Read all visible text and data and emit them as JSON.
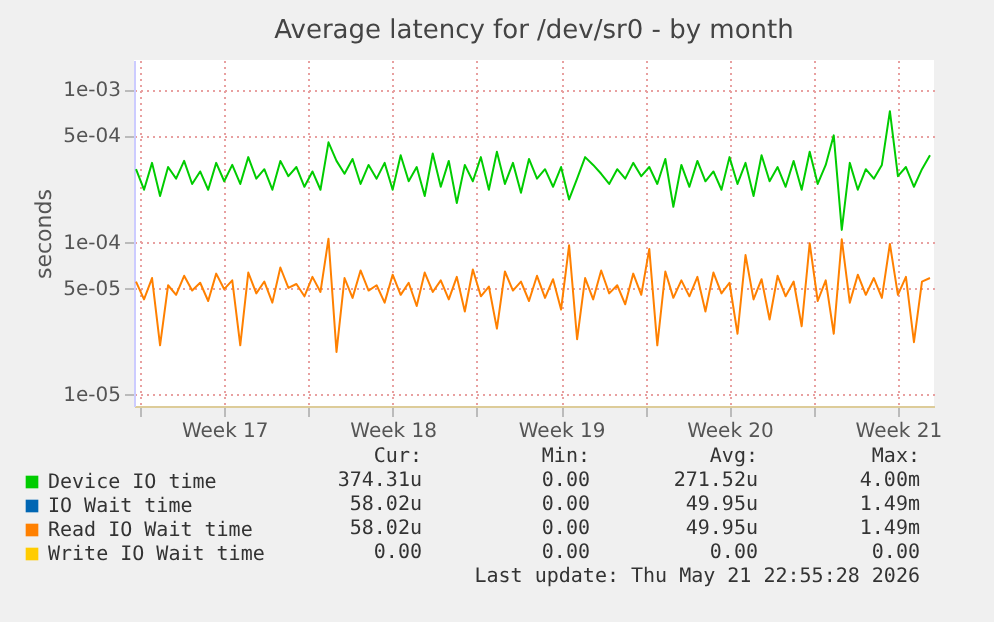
{
  "chart_data": {
    "type": "line",
    "title": "Average latency for /dev/sr0 - by month",
    "ylabel": "seconds",
    "log": true,
    "grid": true,
    "legend": "bottom left",
    "xlim": [
      "2026-04-19T18:00",
      "2026-05-23T00:00"
    ],
    "xticks": [
      {
        "value": "2026-04-20T00:00",
        "label": null
      },
      {
        "value": "2026-04-23T12:00",
        "label": "Week 17"
      },
      {
        "value": "2026-04-27T00:00",
        "label": null
      },
      {
        "value": "2026-04-30T12:00",
        "label": "Week 18"
      },
      {
        "value": "2026-05-04T00:00",
        "label": null
      },
      {
        "value": "2026-05-07T12:00",
        "label": "Week 19"
      },
      {
        "value": "2026-05-11T00:00",
        "label": null
      },
      {
        "value": "2026-05-14T12:00",
        "label": "Week 20"
      },
      {
        "value": "2026-05-18T00:00",
        "label": null
      },
      {
        "value": "2026-05-21T12:00",
        "label": "Week 21"
      }
    ],
    "ylim": [
      8.4e-06,
      0.00156
    ],
    "yticks": [
      {
        "value": 1e-05,
        "label": "1e-05"
      },
      {
        "value": 5e-05,
        "label": "5e-05"
      },
      {
        "value": 0.0001,
        "label": "1e-04"
      },
      {
        "value": 0.0005,
        "label": "5e-04"
      },
      {
        "value": 0.001,
        "label": "1e-03"
      }
    ],
    "x": [
      "2026-04-19T20:00",
      "2026-04-20T04:00",
      "2026-04-20T12:00",
      "2026-04-20T20:00",
      "2026-04-21T04:00",
      "2026-04-21T12:00",
      "2026-04-21T20:00",
      "2026-04-22T04:00",
      "2026-04-22T12:00",
      "2026-04-22T20:00",
      "2026-04-23T04:00",
      "2026-04-23T12:00",
      "2026-04-23T20:00",
      "2026-04-24T04:00",
      "2026-04-24T12:00",
      "2026-04-24T20:00",
      "2026-04-25T04:00",
      "2026-04-25T12:00",
      "2026-04-25T20:00",
      "2026-04-26T04:00",
      "2026-04-26T12:00",
      "2026-04-26T20:00",
      "2026-04-27T04:00",
      "2026-04-27T12:00",
      "2026-04-27T20:00",
      "2026-04-28T04:00",
      "2026-04-28T12:00",
      "2026-04-28T20:00",
      "2026-04-29T04:00",
      "2026-04-29T12:00",
      "2026-04-29T20:00",
      "2026-04-30T04:00",
      "2026-04-30T12:00",
      "2026-04-30T20:00",
      "2026-05-01T04:00",
      "2026-05-01T12:00",
      "2026-05-01T20:00",
      "2026-05-02T04:00",
      "2026-05-02T12:00",
      "2026-05-02T20:00",
      "2026-05-03T04:00",
      "2026-05-03T12:00",
      "2026-05-03T20:00",
      "2026-05-04T04:00",
      "2026-05-04T12:00",
      "2026-05-04T20:00",
      "2026-05-05T04:00",
      "2026-05-05T12:00",
      "2026-05-05T20:00",
      "2026-05-06T04:00",
      "2026-05-06T12:00",
      "2026-05-06T20:00",
      "2026-05-07T04:00",
      "2026-05-07T12:00",
      "2026-05-07T20:00",
      "2026-05-08T04:00",
      "2026-05-08T12:00",
      "2026-05-08T20:00",
      "2026-05-09T04:00",
      "2026-05-09T12:00",
      "2026-05-09T20:00",
      "2026-05-10T04:00",
      "2026-05-10T12:00",
      "2026-05-10T20:00",
      "2026-05-11T04:00",
      "2026-05-11T12:00",
      "2026-05-11T20:00",
      "2026-05-12T04:00",
      "2026-05-12T12:00",
      "2026-05-12T20:00",
      "2026-05-13T04:00",
      "2026-05-13T12:00",
      "2026-05-13T20:00",
      "2026-05-14T04:00",
      "2026-05-14T12:00",
      "2026-05-14T20:00",
      "2026-05-15T04:00",
      "2026-05-15T12:00",
      "2026-05-15T20:00",
      "2026-05-16T04:00",
      "2026-05-16T12:00",
      "2026-05-16T20:00",
      "2026-05-17T04:00",
      "2026-05-17T12:00",
      "2026-05-17T20:00",
      "2026-05-18T04:00",
      "2026-05-18T12:00",
      "2026-05-18T20:00",
      "2026-05-19T04:00",
      "2026-05-19T12:00",
      "2026-05-19T20:00",
      "2026-05-20T04:00",
      "2026-05-20T12:00",
      "2026-05-20T20:00",
      "2026-05-21T04:00",
      "2026-05-21T12:00",
      "2026-05-21T20:00",
      "2026-05-22T04:00",
      "2026-05-22T12:00",
      "2026-05-22T20:00"
    ],
    "series": [
      {
        "name": "Device IO time",
        "color": "#00cc00",
        "values": [
          0.0003,
          0.00022,
          0.00033,
          0.0002,
          0.00031,
          0.00026,
          0.00034,
          0.00024,
          0.00029,
          0.00022,
          0.00033,
          0.00025,
          0.00032,
          0.00024,
          0.00036,
          0.00026,
          0.0003,
          0.00022,
          0.00034,
          0.00027,
          0.00031,
          0.00023,
          0.00029,
          0.00022,
          0.00045,
          0.00034,
          0.00028,
          0.00035,
          0.00024,
          0.00032,
          0.00026,
          0.00033,
          0.00022,
          0.00037,
          0.00025,
          0.00031,
          0.0002,
          0.00038,
          0.00023,
          0.00034,
          0.00018,
          0.00032,
          0.00025,
          0.00036,
          0.00022,
          0.00039,
          0.00024,
          0.00033,
          0.00021,
          0.00035,
          0.00026,
          0.0003,
          0.00023,
          0.00031,
          0.00019,
          0.00026,
          0.00036,
          0.00032,
          0.00028,
          0.00024,
          0.0003,
          0.00026,
          0.00033,
          0.00027,
          0.00031,
          0.00024,
          0.00035,
          0.00017,
          0.00032,
          0.00023,
          0.00034,
          0.00025,
          0.00029,
          0.00022,
          0.00036,
          0.00024,
          0.00033,
          0.0002,
          0.00037,
          0.00025,
          0.00031,
          0.00023,
          0.00034,
          0.00022,
          0.00039,
          0.00024,
          0.00032,
          0.0005,
          0.00012,
          0.00033,
          0.00022,
          0.0003,
          0.00026,
          0.00032,
          0.00072,
          0.00027,
          0.00031,
          0.00023,
          0.0003,
          0.00037
        ]
      },
      {
        "name": "IO Wait time",
        "color": "#0066b3",
        "values": [
          null,
          null,
          null,
          null,
          null,
          null,
          null,
          null,
          null,
          null,
          null,
          null,
          null,
          null,
          null,
          null,
          null,
          null,
          null,
          null,
          null,
          null,
          null,
          null,
          null,
          null,
          null,
          null,
          null,
          null,
          null,
          null,
          null,
          null,
          null,
          null,
          null,
          null,
          null,
          null,
          null,
          null,
          null,
          null,
          null,
          null,
          null,
          null,
          null,
          null,
          null,
          null,
          null,
          null,
          null,
          null,
          null,
          null,
          null,
          null,
          null,
          null,
          null,
          null,
          null,
          null,
          null,
          null,
          null,
          null,
          null,
          null,
          null,
          null,
          null,
          null,
          null,
          null,
          null,
          null,
          null,
          null,
          null,
          null,
          null,
          null,
          null,
          null,
          null,
          null,
          null,
          null,
          null,
          null,
          null,
          null,
          null,
          null,
          null,
          null
        ]
      },
      {
        "name": "Read IO Wait time",
        "color": "#ff8000",
        "values": [
          5.5e-05,
          4.2e-05,
          5.8e-05,
          2.1e-05,
          5.2e-05,
          4.5e-05,
          6e-05,
          4.8e-05,
          5.4e-05,
          4.1e-05,
          6.2e-05,
          4.9e-05,
          5.6e-05,
          2.1e-05,
          6.3e-05,
          4.6e-05,
          5.5e-05,
          4e-05,
          6.8e-05,
          5e-05,
          5.3e-05,
          4.4e-05,
          5.9e-05,
          4.7e-05,
          0.000105,
          1.9e-05,
          5.8e-05,
          4.3e-05,
          6.5e-05,
          4.8e-05,
          5.2e-05,
          4e-05,
          6.1e-05,
          4.5e-05,
          5.4e-05,
          3.8e-05,
          6.3e-05,
          4.7e-05,
          5.6e-05,
          4.2e-05,
          5.9e-05,
          3.5e-05,
          6.6e-05,
          4.4e-05,
          5.1e-05,
          2.7e-05,
          6.4e-05,
          4.8e-05,
          5.5e-05,
          4.1e-05,
          6e-05,
          4.3e-05,
          5.7e-05,
          3.6e-05,
          9.5e-05,
          2.3e-05,
          5.8e-05,
          4.2e-05,
          6.5e-05,
          4.6e-05,
          5.2e-05,
          3.9e-05,
          6.2e-05,
          4.5e-05,
          9e-05,
          2.1e-05,
          6.4e-05,
          4.3e-05,
          5.6e-05,
          4.4e-05,
          5.9e-05,
          3.5e-05,
          6.3e-05,
          4.6e-05,
          5.4e-05,
          2.5e-05,
          8.2e-05,
          4.2e-05,
          5.7e-05,
          3.1e-05,
          6e-05,
          4.4e-05,
          5.5e-05,
          2.8e-05,
          9.8e-05,
          4.1e-05,
          5.6e-05,
          2.5e-05,
          0.000104,
          4e-05,
          6.1e-05,
          4.5e-05,
          5.8e-05,
          4.3e-05,
          9.7e-05,
          4.5e-05,
          5.9e-05,
          2.2e-05,
          5.5e-05,
          5.8e-05
        ]
      },
      {
        "name": "Write IO Wait time",
        "color": "#ffcc00",
        "values": [
          null,
          null,
          null,
          null,
          null,
          null,
          null,
          null,
          null,
          null,
          null,
          null,
          null,
          null,
          null,
          null,
          null,
          null,
          null,
          null,
          null,
          null,
          null,
          null,
          null,
          null,
          null,
          null,
          null,
          null,
          null,
          null,
          null,
          null,
          null,
          null,
          null,
          null,
          null,
          null,
          null,
          null,
          null,
          null,
          null,
          null,
          null,
          null,
          null,
          null,
          null,
          null,
          null,
          null,
          null,
          null,
          null,
          null,
          null,
          null,
          null,
          null,
          null,
          null,
          null,
          null,
          null,
          null,
          null,
          null,
          null,
          null,
          null,
          null,
          null,
          null,
          null,
          null,
          null,
          null,
          null,
          null,
          null,
          null,
          null,
          null,
          null,
          null,
          null,
          null,
          null,
          null,
          null,
          null,
          null,
          null,
          null,
          null,
          null,
          null
        ]
      }
    ],
    "annotations": [
      "Cur:",
      "Min:",
      "Avg:",
      "Max:",
      "374.31u",
      "0.00",
      "271.52u",
      "4.00m",
      "58.02u",
      "0.00",
      "49.95u",
      "1.49m",
      "58.02u",
      "0.00",
      "49.95u",
      "1.49m",
      "0.00",
      "0.00",
      "0.00",
      "0.00",
      "Last update: Thu May 21 22:55:28 2026"
    ]
  }
}
